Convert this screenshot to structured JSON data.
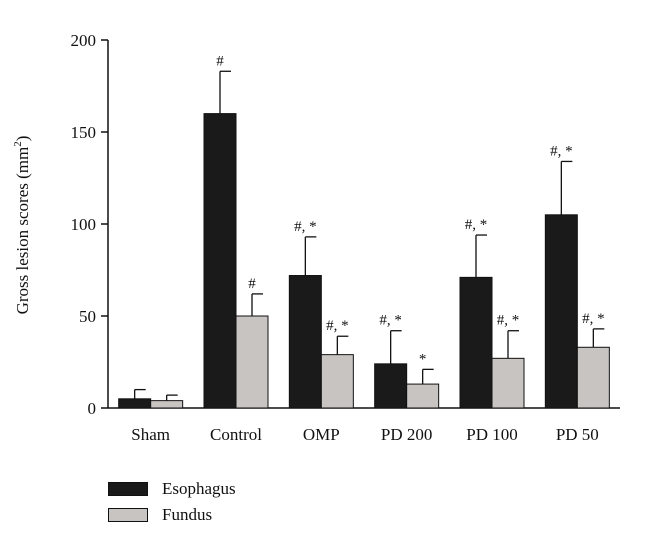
{
  "chart_data": {
    "type": "bar",
    "categories": [
      "Sham",
      "Control",
      "OMP",
      "PD 200",
      "PD 100",
      "PD 50"
    ],
    "ylabel": "Gross lesion scores (mm",
    "ylabel_sup": "2",
    "ylabel_end": ")",
    "ylim": [
      0,
      200
    ],
    "yticks": [
      0,
      50,
      100,
      150,
      200
    ],
    "series": [
      {
        "name": "Esophagus",
        "color": "#1a1a1a",
        "values": [
          5,
          160,
          72,
          24,
          71,
          105
        ],
        "errors": [
          5,
          23,
          21,
          18,
          23,
          29
        ],
        "annotations": [
          "",
          "#",
          "#, *",
          "#, *",
          "#, *",
          "#, *"
        ]
      },
      {
        "name": "Fundus",
        "color": "#c8c4c2",
        "values": [
          4,
          50,
          29,
          13,
          27,
          33
        ],
        "errors": [
          3,
          12,
          10,
          8,
          15,
          10
        ],
        "annotations": [
          "",
          "#",
          "#, *",
          "*",
          "#, *",
          "#, *"
        ]
      }
    ]
  }
}
